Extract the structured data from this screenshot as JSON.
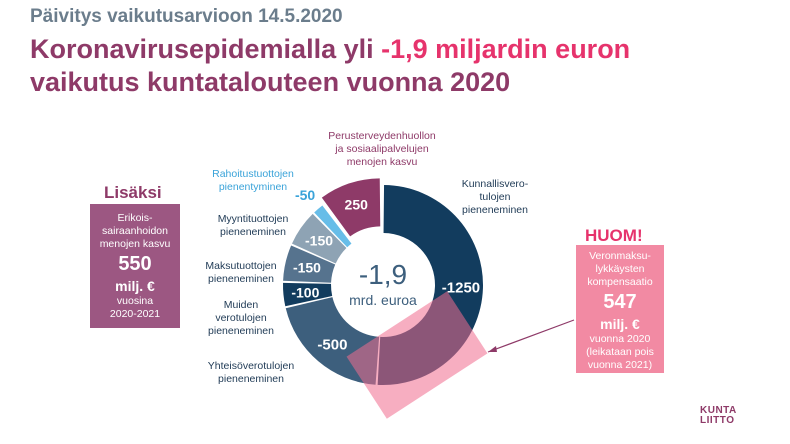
{
  "header": {
    "subtitle": "Päivitys vaikutusarvioon 14.5.2020",
    "title_part1": "Koronavirusepidemialla yli ",
    "title_highlight": "-1,9 miljardin euron",
    "title_line2": "vaikutus kuntatalouteen vuonna 2020"
  },
  "colors": {
    "title": "#8e3a68",
    "highlight": "#e6336c",
    "dark_navy": "#123c5e",
    "slate": "#3d5f7d",
    "grey_blue": "#8ea3b4",
    "light_blue": "#67bde8",
    "plum": "#8e3a68",
    "pink_box": "#f28aa3"
  },
  "chart_data": {
    "type": "pie",
    "center_value": "-1,9",
    "center_unit": "mrd. euroa",
    "slices": [
      {
        "value": -1250,
        "display": "-1250",
        "label": "Kunnallisvero-\ntulojen\npieneneminen",
        "color": "#123c5e"
      },
      {
        "value": -500,
        "display": "-500",
        "label": "Yhteisöverotulojen\npieneneminen",
        "color": "#3d5f7d"
      },
      {
        "value": -100,
        "display": "-100",
        "label": "Muiden\nverotulojen\npieneneminen",
        "color": "#123c5e"
      },
      {
        "value": -150,
        "display": "-150",
        "label": "Maksutuottojen\npieneneminen",
        "color": "#56738e"
      },
      {
        "value": -150,
        "display": "-150",
        "label": "Myyntituottojen\npieneneminen",
        "color": "#8ea3b4"
      },
      {
        "value": -50,
        "display": "-50",
        "label": "Rahoitustuottojen\npienentyminen",
        "color": "#67bde8"
      },
      {
        "value": 250,
        "display": "250",
        "label": "Perusterveydenhuollon\nja sosiaalipalvelujen\nmenojen kasvu",
        "color": "#8e3a68"
      }
    ]
  },
  "left_panel": {
    "heading": "Lisäksi",
    "line1": "Erikois-",
    "line2": "sairaanhoidon",
    "line3": "menojen kasvu",
    "amount": "550",
    "unit": "milj. €",
    "line4": "vuosina",
    "line5": "2020-2021"
  },
  "right_panel": {
    "heading": "HUOM!",
    "line1": "Veronmaksu-",
    "line2": "lykkäysten",
    "line3": "kompensaatio",
    "amount": "547",
    "unit": "milj. €",
    "line4": "vuonna 2020",
    "line5": "(leikataan pois",
    "line6": "vuonna 2021)"
  },
  "logo": {
    "line1": "KUNTA",
    "line2": "LIITTO"
  }
}
